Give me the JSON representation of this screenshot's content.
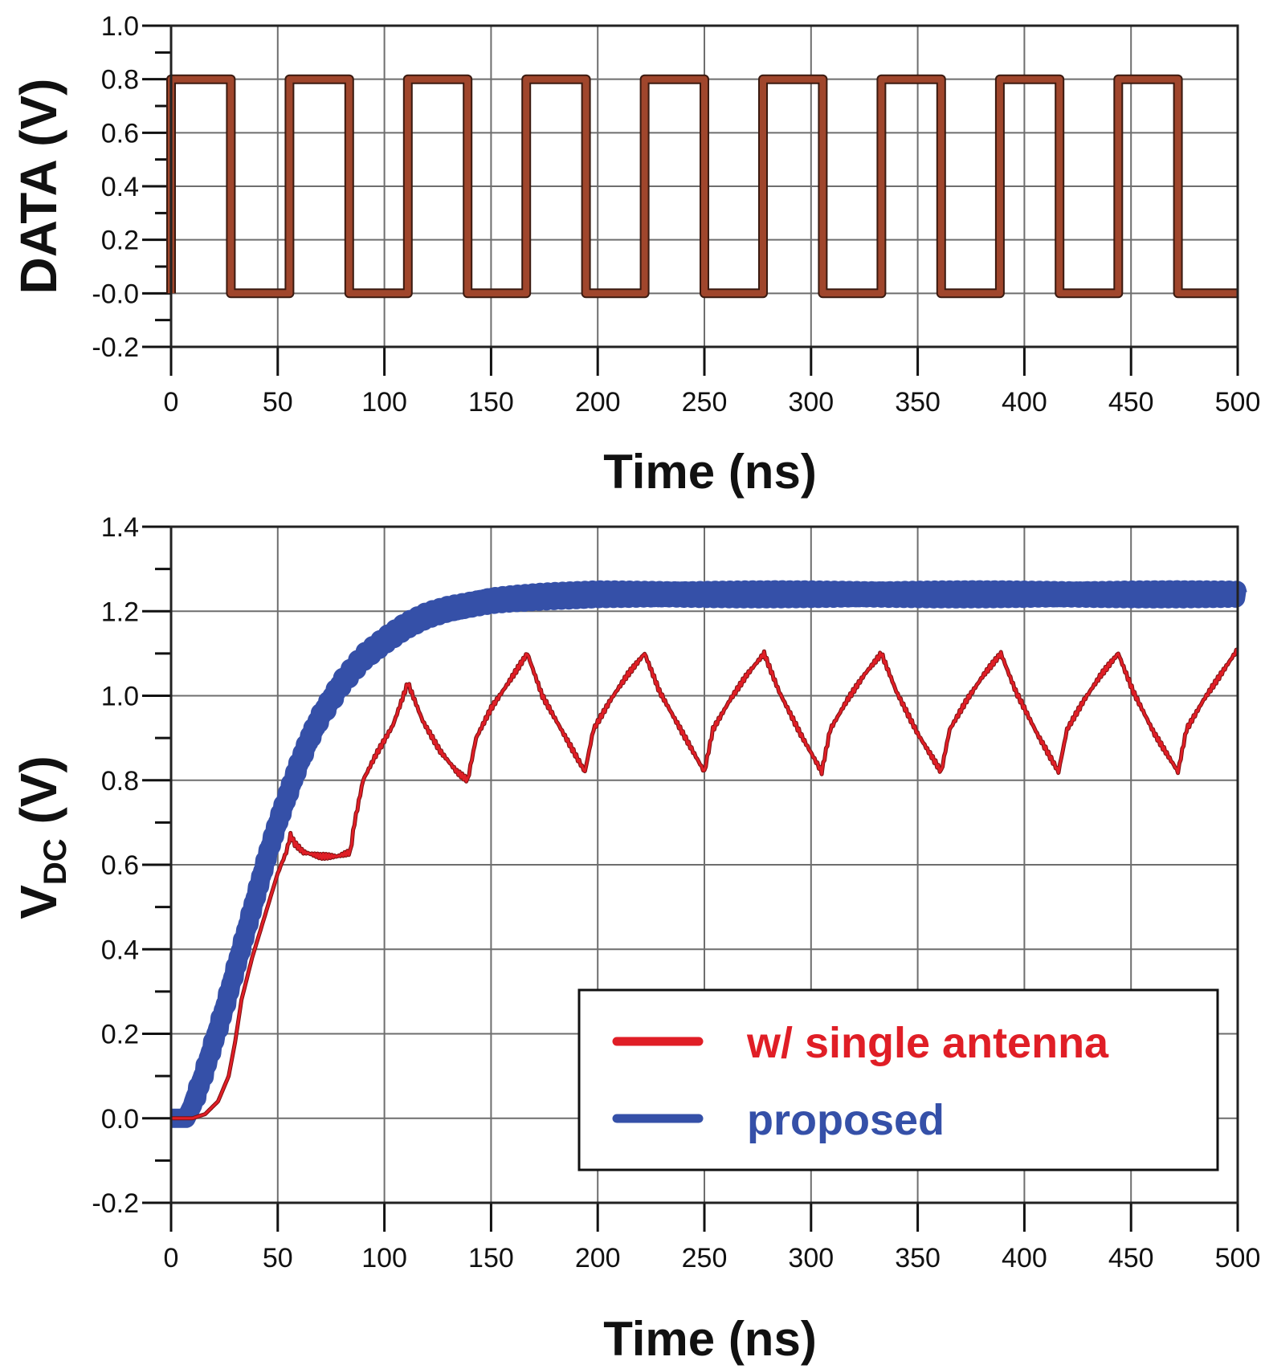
{
  "colors": {
    "data_trace": "#a0462c",
    "single_antenna": "#e01e26",
    "single_antenna_edge": "#7a1010",
    "proposed": "#3550a8",
    "grid": "#6e6e6e",
    "axis": "#111111"
  },
  "chart_data": [
    {
      "type": "line",
      "title": "",
      "xlabel": "Time (ns)",
      "ylabel": "DATA (V)",
      "xlim": [
        0,
        500
      ],
      "ylim": [
        -0.2,
        1.0
      ],
      "grid": true,
      "x_ticks": [
        "0",
        "50",
        "100",
        "150",
        "200",
        "250",
        "300",
        "350",
        "400",
        "450",
        "500"
      ],
      "y_ticks": [
        "1.0",
        "0.8",
        "0.6",
        "0.4",
        "0.2",
        "-0.0",
        "-0.2"
      ],
      "y_tick_values": [
        1.0,
        0.8,
        0.6,
        0.4,
        0.2,
        0.0,
        -0.2
      ],
      "x_tick_values": [
        0,
        50,
        100,
        150,
        200,
        250,
        300,
        350,
        400,
        450,
        500
      ],
      "series": [
        {
          "name": "DATA",
          "high": 0.8,
          "low": 0.0,
          "period_ns": 55.5,
          "x": [
            0,
            0,
            28,
            28,
            55.5,
            55.5,
            83.5,
            83.5,
            111,
            111,
            139,
            139,
            166.5,
            166.5,
            194.5,
            194.5,
            222,
            222,
            250,
            250,
            277.5,
            277.5,
            305.5,
            305.5,
            333,
            333,
            361,
            361,
            388.5,
            388.5,
            416.5,
            416.5,
            444,
            444,
            472,
            472,
            500
          ],
          "y": [
            0,
            0.8,
            0.8,
            0,
            0,
            0.8,
            0.8,
            0,
            0,
            0.8,
            0.8,
            0,
            0,
            0.8,
            0.8,
            0,
            0,
            0.8,
            0.8,
            0,
            0,
            0.8,
            0.8,
            0,
            0,
            0.8,
            0.8,
            0,
            0,
            0.8,
            0.8,
            0,
            0,
            0.8,
            0.8,
            0,
            0
          ]
        }
      ]
    },
    {
      "type": "line",
      "title": "",
      "xlabel": "Time (ns)",
      "ylabel_main": "V",
      "ylabel_sub": "DC",
      "ylabel_unit": " (V)",
      "xlim": [
        0,
        500
      ],
      "ylim": [
        -0.2,
        1.4
      ],
      "grid": true,
      "x_ticks": [
        "0",
        "50",
        "100",
        "150",
        "200",
        "250",
        "300",
        "350",
        "400",
        "450",
        "500"
      ],
      "y_ticks": [
        "1.4",
        "1.2",
        "1.0",
        "0.8",
        "0.6",
        "0.4",
        "0.2",
        "0.0",
        "-0.2"
      ],
      "y_tick_values": [
        1.4,
        1.2,
        1.0,
        0.8,
        0.6,
        0.4,
        0.2,
        0.0,
        -0.2
      ],
      "x_tick_values": [
        0,
        50,
        100,
        150,
        200,
        250,
        300,
        350,
        400,
        450,
        500
      ],
      "legend_position": "bottom-right",
      "series": [
        {
          "name": "w/ single antenna",
          "x": [
            0,
            10,
            16,
            22,
            27,
            30,
            33,
            38,
            44,
            50,
            54,
            56,
            58,
            62,
            70,
            78,
            84,
            86,
            90,
            96,
            104,
            111,
            118,
            126,
            134,
            139,
            143,
            150,
            158,
            167,
            174,
            184,
            194,
            198,
            206,
            214,
            222,
            229,
            240,
            250,
            254,
            262,
            270,
            278,
            285,
            295,
            305,
            309,
            317,
            325,
            333,
            340,
            350,
            361,
            365,
            373,
            381,
            389,
            396,
            406,
            416,
            420,
            428,
            436,
            444,
            451,
            461,
            472,
            476,
            484,
            492,
            500
          ],
          "y": [
            0,
            0,
            0.01,
            0.04,
            0.1,
            0.18,
            0.28,
            0.38,
            0.48,
            0.58,
            0.63,
            0.67,
            0.65,
            0.63,
            0.62,
            0.62,
            0.63,
            0.7,
            0.8,
            0.86,
            0.93,
            1.03,
            0.94,
            0.87,
            0.82,
            0.8,
            0.9,
            0.97,
            1.03,
            1.1,
            1.0,
            0.91,
            0.82,
            0.92,
            0.99,
            1.05,
            1.1,
            1.01,
            0.91,
            0.82,
            0.92,
            0.99,
            1.05,
            1.1,
            1.01,
            0.91,
            0.82,
            0.92,
            0.99,
            1.05,
            1.1,
            1.01,
            0.91,
            0.82,
            0.92,
            0.99,
            1.05,
            1.1,
            1.01,
            0.91,
            0.82,
            0.92,
            0.99,
            1.05,
            1.1,
            1.01,
            0.91,
            0.82,
            0.92,
            0.99,
            1.05,
            1.11
          ]
        },
        {
          "name": "proposed",
          "x": [
            0,
            7,
            10,
            15,
            20,
            25,
            30,
            35,
            40,
            45,
            50,
            55,
            60,
            65,
            70,
            75,
            80,
            90,
            100,
            110,
            120,
            130,
            140,
            150,
            160,
            175,
            200,
            250,
            300,
            350,
            400,
            450,
            500
          ],
          "y": [
            0,
            0,
            0.03,
            0.1,
            0.18,
            0.26,
            0.35,
            0.44,
            0.53,
            0.62,
            0.7,
            0.77,
            0.84,
            0.9,
            0.95,
            0.99,
            1.03,
            1.09,
            1.13,
            1.165,
            1.19,
            1.205,
            1.215,
            1.225,
            1.23,
            1.235,
            1.24,
            1.24,
            1.24,
            1.24,
            1.24,
            1.24,
            1.24
          ]
        }
      ]
    }
  ]
}
